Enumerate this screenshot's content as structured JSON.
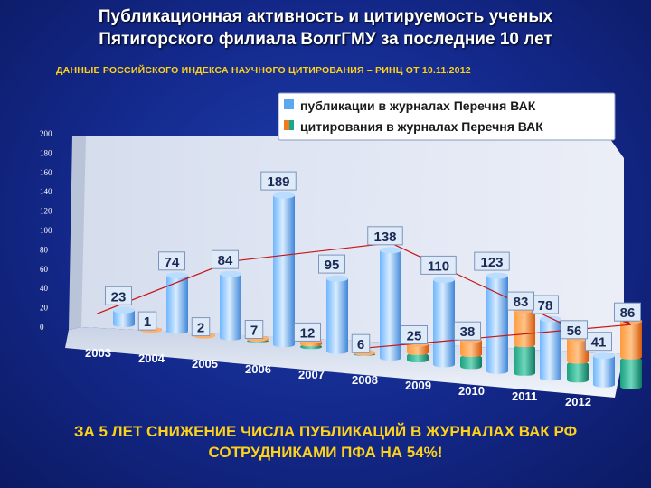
{
  "title_line1": "Публикационная активность и цитируемость ученых",
  "title_line2": "Пятигорского филиала ВолгГМУ за последние 10 лет",
  "subtitle": "ДАННЫЕ РОССИЙСКОГО ИНДЕКСА НАУЧНОГО ЦИТИРОВАНИЯ – РИНЦ ОТ 10.11.2012",
  "footer_line1": "ЗА 5 ЛЕТ СНИЖЕНИЕ ЧИСЛА ПУБЛИКАЦИЙ В ЖУРНАЛАХ ВАК РФ",
  "footer_line2": "СОТРУДНИКАМИ ПФА НА 54%!",
  "colors": {
    "publications": "#5aa8f0",
    "citations_orange": "#f07a1e",
    "citations_green": "#1aa88a",
    "trend": "#c81414"
  },
  "chart_data": {
    "type": "bar",
    "categories": [
      "2003",
      "2004",
      "2005",
      "2006",
      "2007",
      "2008",
      "2009",
      "2010",
      "2011",
      "2012"
    ],
    "series": [
      {
        "name": "публикации в журналах Перечня ВАК",
        "values": [
          23,
          74,
          84,
          189,
          95,
          138,
          110,
          123,
          78,
          41
        ]
      },
      {
        "name": "цитирования в журналах Перечня ВАК",
        "values": [
          1,
          2,
          7,
          12,
          6,
          25,
          38,
          83,
          56,
          86
        ]
      }
    ],
    "yticks": [
      "0",
      "20",
      "40",
      "60",
      "80",
      "100",
      "120",
      "140",
      "160",
      "180",
      "200"
    ],
    "ylim": [
      0,
      200
    ],
    "legend_position": "top-right",
    "trend_lines": [
      "publications-trend",
      "citations-trend"
    ],
    "grid": false
  }
}
